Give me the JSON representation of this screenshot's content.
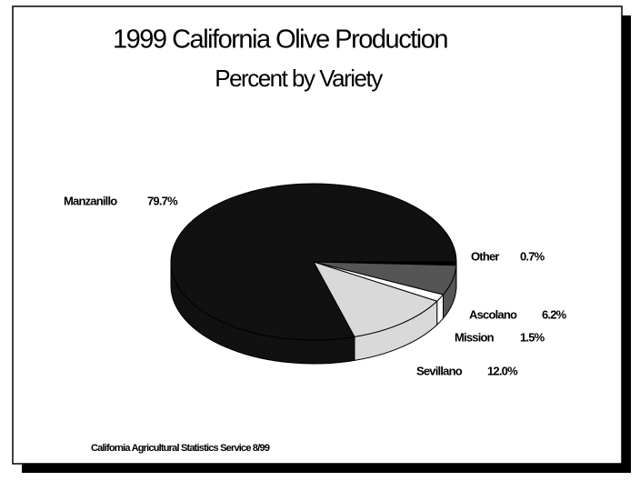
{
  "chart_data": {
    "type": "pie",
    "title": "1999 California Olive Production",
    "subtitle": "Percent by Variety",
    "categories": [
      "Other",
      "Ascolano",
      "Mission",
      "Sevillano",
      "Manzanillo"
    ],
    "values": [
      0.7,
      6.2,
      1.5,
      12.0,
      79.7
    ],
    "value_labels": [
      "0.7%",
      "6.2%",
      "1.5%",
      "12.0%",
      "79.7%"
    ],
    "colors": [
      "#000000",
      "#555555",
      "#ffffff",
      "#d9d9d9",
      "#111111"
    ],
    "source": "California Agricultural Statistics Service 8/99"
  }
}
